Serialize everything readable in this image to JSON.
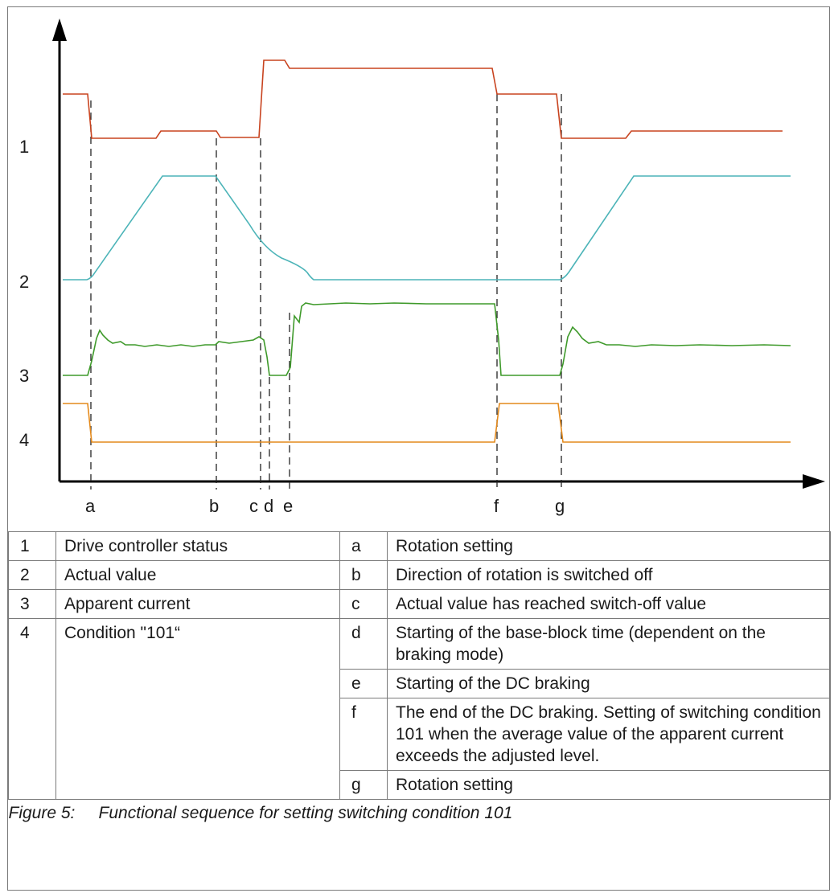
{
  "diagram": {
    "row_numbers": [
      "1",
      "2",
      "3",
      "4"
    ],
    "event_letters": [
      "a",
      "b",
      "c",
      "d",
      "e",
      "f",
      "g"
    ],
    "colors": {
      "status": "#c8431f",
      "actual": "#4cb4b8",
      "current": "#3f9a2b",
      "condition": "#e48a1c",
      "axis": "#000000",
      "marker": "#222222"
    }
  },
  "legend": {
    "rows": [
      {
        "num": "1",
        "label": "Drive controller status",
        "letter": "a",
        "desc": "Rotation setting"
      },
      {
        "num": "2",
        "label": "Actual value",
        "letter": "b",
        "desc": "Direction of rotation is switched off"
      },
      {
        "num": "3",
        "label": "Apparent current",
        "letter": "c",
        "desc": "Actual value has reached switch-off value"
      },
      {
        "num": "4",
        "label": "Condition \"101“",
        "letter": "d",
        "desc": "Starting of the base-block time (dependent on the braking mode)"
      },
      {
        "letter": "e",
        "desc": "Starting of the DC braking"
      },
      {
        "letter": "f",
        "desc": "The end of the DC braking. Setting of switching condition 101 when the average value of the apparent current exceeds the adjusted level."
      },
      {
        "letter": "g",
        "desc": "Rotation setting"
      }
    ],
    "caption": "Figure 5:     Functional sequence for setting switching condition 101"
  }
}
